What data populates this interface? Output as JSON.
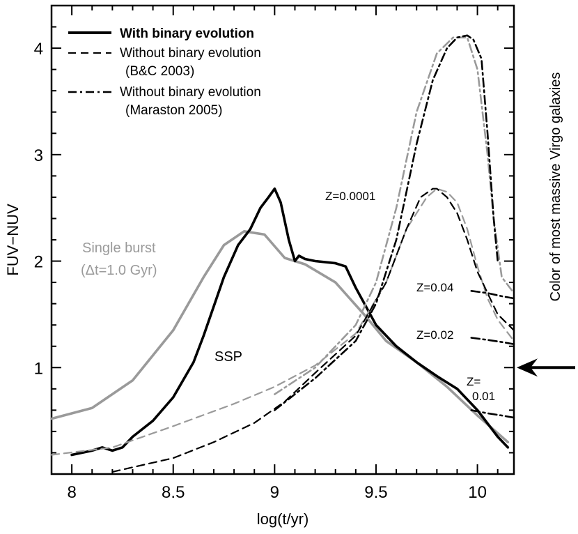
{
  "chart_data": {
    "type": "line",
    "title": "",
    "xlabel": "log(t/yr)",
    "ylabel": "FUV−NUV",
    "xlim": [
      7.9,
      10.18
    ],
    "ylim": [
      0.0,
      4.4
    ],
    "xticks": [
      8,
      8.5,
      9,
      9.5,
      10
    ],
    "xtick_labels": [
      "8",
      "8.5",
      "9",
      "9.5",
      "10"
    ],
    "yticks": [
      1,
      2,
      3,
      4
    ],
    "ytick_labels": [
      "1",
      "2",
      "3",
      "4"
    ],
    "grid": false,
    "legend": {
      "placement": "top-left",
      "entries": [
        {
          "label": "With binary evolution",
          "style": "solid"
        },
        {
          "label": "Without binary evolution",
          "label2": "(B&C 2003)",
          "style": "dashed"
        },
        {
          "label": "Without binary evolution",
          "label2": "(Maraston 2005)",
          "style": "dashdot"
        }
      ]
    },
    "series": [
      {
        "name": "Single burst binary (Delta t = 1.0 Gyr)",
        "color": "#9a9a9a",
        "style": "solid",
        "x": [
          7.9,
          8.1,
          8.3,
          8.5,
          8.65,
          8.75,
          8.85,
          8.95,
          9.05,
          9.15,
          9.3,
          9.45,
          9.55,
          9.7,
          9.85,
          10.0,
          10.15
        ],
        "y": [
          0.52,
          0.62,
          0.88,
          1.35,
          1.85,
          2.15,
          2.28,
          2.25,
          2.03,
          1.97,
          1.8,
          1.48,
          1.25,
          1.05,
          0.82,
          0.55,
          0.3
        ]
      },
      {
        "name": "SSP binary",
        "color": "#000000",
        "style": "solid",
        "x": [
          8.0,
          8.1,
          8.15,
          8.2,
          8.25,
          8.3,
          8.4,
          8.5,
          8.6,
          8.65,
          8.75,
          8.82,
          8.88,
          8.93,
          8.97,
          9.0,
          9.03,
          9.07,
          9.1,
          9.12,
          9.15,
          9.2,
          9.3,
          9.35,
          9.4,
          9.5,
          9.6,
          9.7,
          9.8,
          9.9,
          10.0,
          10.1,
          10.15
        ],
        "y": [
          0.18,
          0.22,
          0.25,
          0.22,
          0.25,
          0.35,
          0.5,
          0.72,
          1.05,
          1.3,
          1.85,
          2.15,
          2.3,
          2.5,
          2.6,
          2.68,
          2.55,
          2.2,
          2.0,
          2.05,
          2.02,
          2.0,
          1.98,
          1.95,
          1.75,
          1.4,
          1.2,
          1.05,
          0.92,
          0.8,
          0.6,
          0.35,
          0.25
        ]
      },
      {
        "name": "B&C 2003 Z=0.0001 (gray)",
        "color": "#9a9a9a",
        "style": "dashed",
        "x": [
          7.9,
          8.2,
          8.5,
          8.8,
          9.0,
          9.2,
          9.4,
          9.55,
          9.65,
          9.75,
          9.8,
          9.85,
          9.9,
          9.95,
          10.0,
          10.05,
          10.1,
          10.18
        ],
        "y": [
          0.18,
          0.25,
          0.45,
          0.66,
          0.82,
          1.02,
          1.32,
          1.8,
          2.3,
          2.6,
          2.68,
          2.65,
          2.55,
          2.3,
          1.95,
          1.65,
          1.45,
          1.25
        ]
      },
      {
        "name": "B&C 2003 Z=0.0001 (black)",
        "color": "#000000",
        "style": "dashed",
        "x": [
          8.2,
          8.5,
          8.7,
          8.9,
          9.05,
          9.2,
          9.4,
          9.55,
          9.65,
          9.72,
          9.78,
          9.8,
          9.85,
          9.9,
          9.95,
          10.0,
          10.05,
          10.1,
          10.18
        ],
        "y": [
          0.02,
          0.15,
          0.3,
          0.48,
          0.68,
          0.95,
          1.3,
          1.8,
          2.3,
          2.6,
          2.68,
          2.68,
          2.6,
          2.45,
          2.2,
          1.9,
          1.7,
          1.5,
          1.35
        ]
      },
      {
        "name": "Maraston 2005 (gray)",
        "color": "#9a9a9a",
        "style": "dashdot",
        "x": [
          9.0,
          9.2,
          9.4,
          9.5,
          9.6,
          9.7,
          9.8,
          9.88,
          9.95,
          10.0,
          10.05,
          10.08,
          10.12,
          10.18
        ],
        "y": [
          0.75,
          1.0,
          1.4,
          1.8,
          2.5,
          3.4,
          3.95,
          4.1,
          4.1,
          3.8,
          3.0,
          2.4,
          1.85,
          1.7
        ]
      },
      {
        "name": "Maraston 2005 (black)",
        "color": "#000000",
        "style": "dashdot",
        "x": [
          9.0,
          9.2,
          9.4,
          9.5,
          9.6,
          9.7,
          9.78,
          9.85,
          9.9,
          9.95,
          9.98,
          10.02,
          10.05,
          10.08,
          10.1
        ],
        "y": [
          0.6,
          0.9,
          1.25,
          1.6,
          2.2,
          3.1,
          3.7,
          4.0,
          4.1,
          4.12,
          4.08,
          3.9,
          3.2,
          2.4,
          2.0
        ]
      },
      {
        "name": "Maraston Z=0.04",
        "color": "#000000",
        "style": "dashdot",
        "x": [
          9.97,
          10.05,
          10.12,
          10.18
        ],
        "y": [
          1.72,
          1.7,
          1.67,
          1.65
        ]
      },
      {
        "name": "Maraston Z=0.02",
        "color": "#000000",
        "style": "dashdot",
        "x": [
          9.97,
          10.05,
          10.12,
          10.18
        ],
        "y": [
          1.28,
          1.26,
          1.24,
          1.22
        ]
      },
      {
        "name": "Maraston Z=0.01",
        "color": "#000000",
        "style": "dashdot",
        "x": [
          9.97,
          10.05,
          10.12,
          10.18
        ],
        "y": [
          0.6,
          0.57,
          0.55,
          0.53
        ]
      }
    ],
    "annotations": {
      "single_burst_line1": "Single burst",
      "single_burst_line2": "(Δt=1.0 Gyr)",
      "ssp": "SSP",
      "z_0001": "Z=0.0001",
      "z_004": "Z=0.04",
      "z_002": "Z=0.02",
      "z_001_line1": "Z=",
      "z_001_line2": "0.01",
      "virgo": "Color of most massive Virgo galaxies"
    },
    "virgo_arrow_y": 1.0
  },
  "colors": {
    "gray": "#9a9a9a",
    "black": "#000000"
  }
}
